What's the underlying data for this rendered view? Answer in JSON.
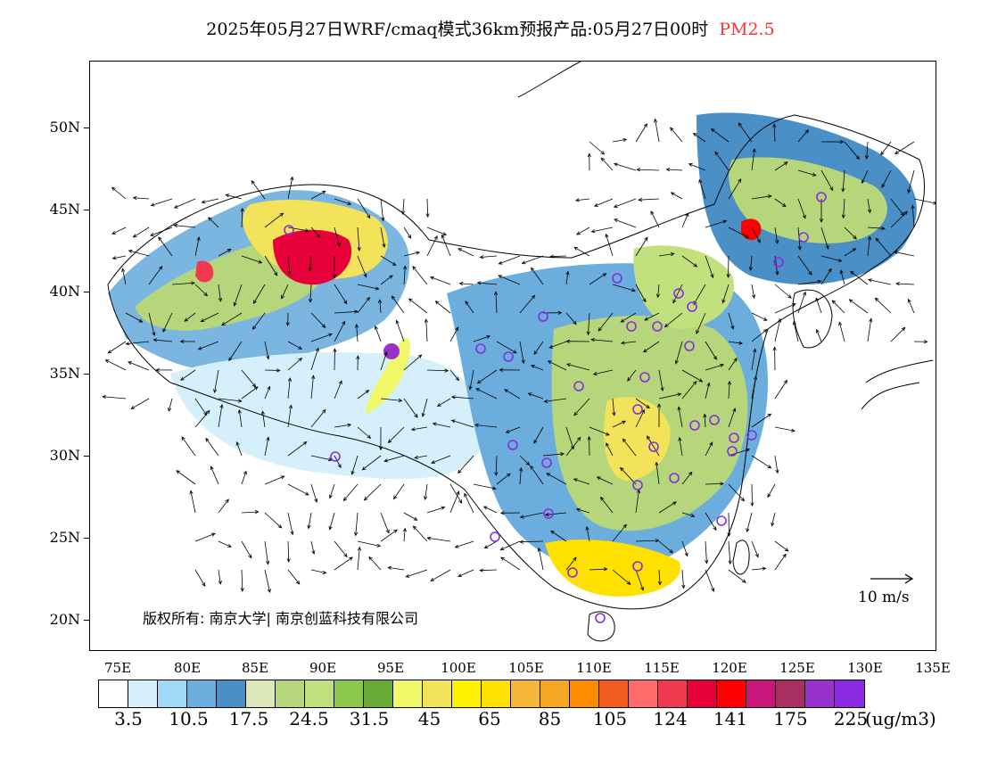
{
  "title": {
    "main": "2025年05月27日WRF/cmaq模式36km预报产品:05月27日00时",
    "variable": "PM2.5",
    "variable_color": "#ff3333"
  },
  "map": {
    "lat_labels": [
      "50N",
      "45N",
      "40N",
      "35N",
      "30N",
      "25N",
      "20N"
    ],
    "lon_labels": [
      "75E",
      "80E",
      "85E",
      "90E",
      "95E",
      "100E",
      "105E",
      "110E",
      "115E",
      "120E",
      "125E",
      "130E",
      "135E"
    ],
    "copyright": "版权所有: 南京大学| 南京创蓝科技有限公司",
    "wind_reference": "10 m/s"
  },
  "legend": {
    "colors": [
      "#ffffff",
      "#d6f0fb",
      "#9fd9f5",
      "#6baedd",
      "#4a8fc6",
      "#dce8b8",
      "#b5d67a",
      "#c2e07e",
      "#8cc84b",
      "#6aaa36",
      "#f0f86a",
      "#f2e35a",
      "#fff200",
      "#ffe100",
      "#f7b73a",
      "#f5a623",
      "#ff8c00",
      "#f25c22",
      "#ff6a6a",
      "#f0384e",
      "#e8003a",
      "#ff0000",
      "#c8167a",
      "#a83060",
      "#9932cc",
      "#8a2be2"
    ],
    "labels": [
      "3.5",
      "10.5",
      "17.5",
      "24.5",
      "31.5",
      "45",
      "65",
      "85",
      "105",
      "124",
      "141",
      "175",
      "225"
    ],
    "unit": "(ug/m3)"
  }
}
